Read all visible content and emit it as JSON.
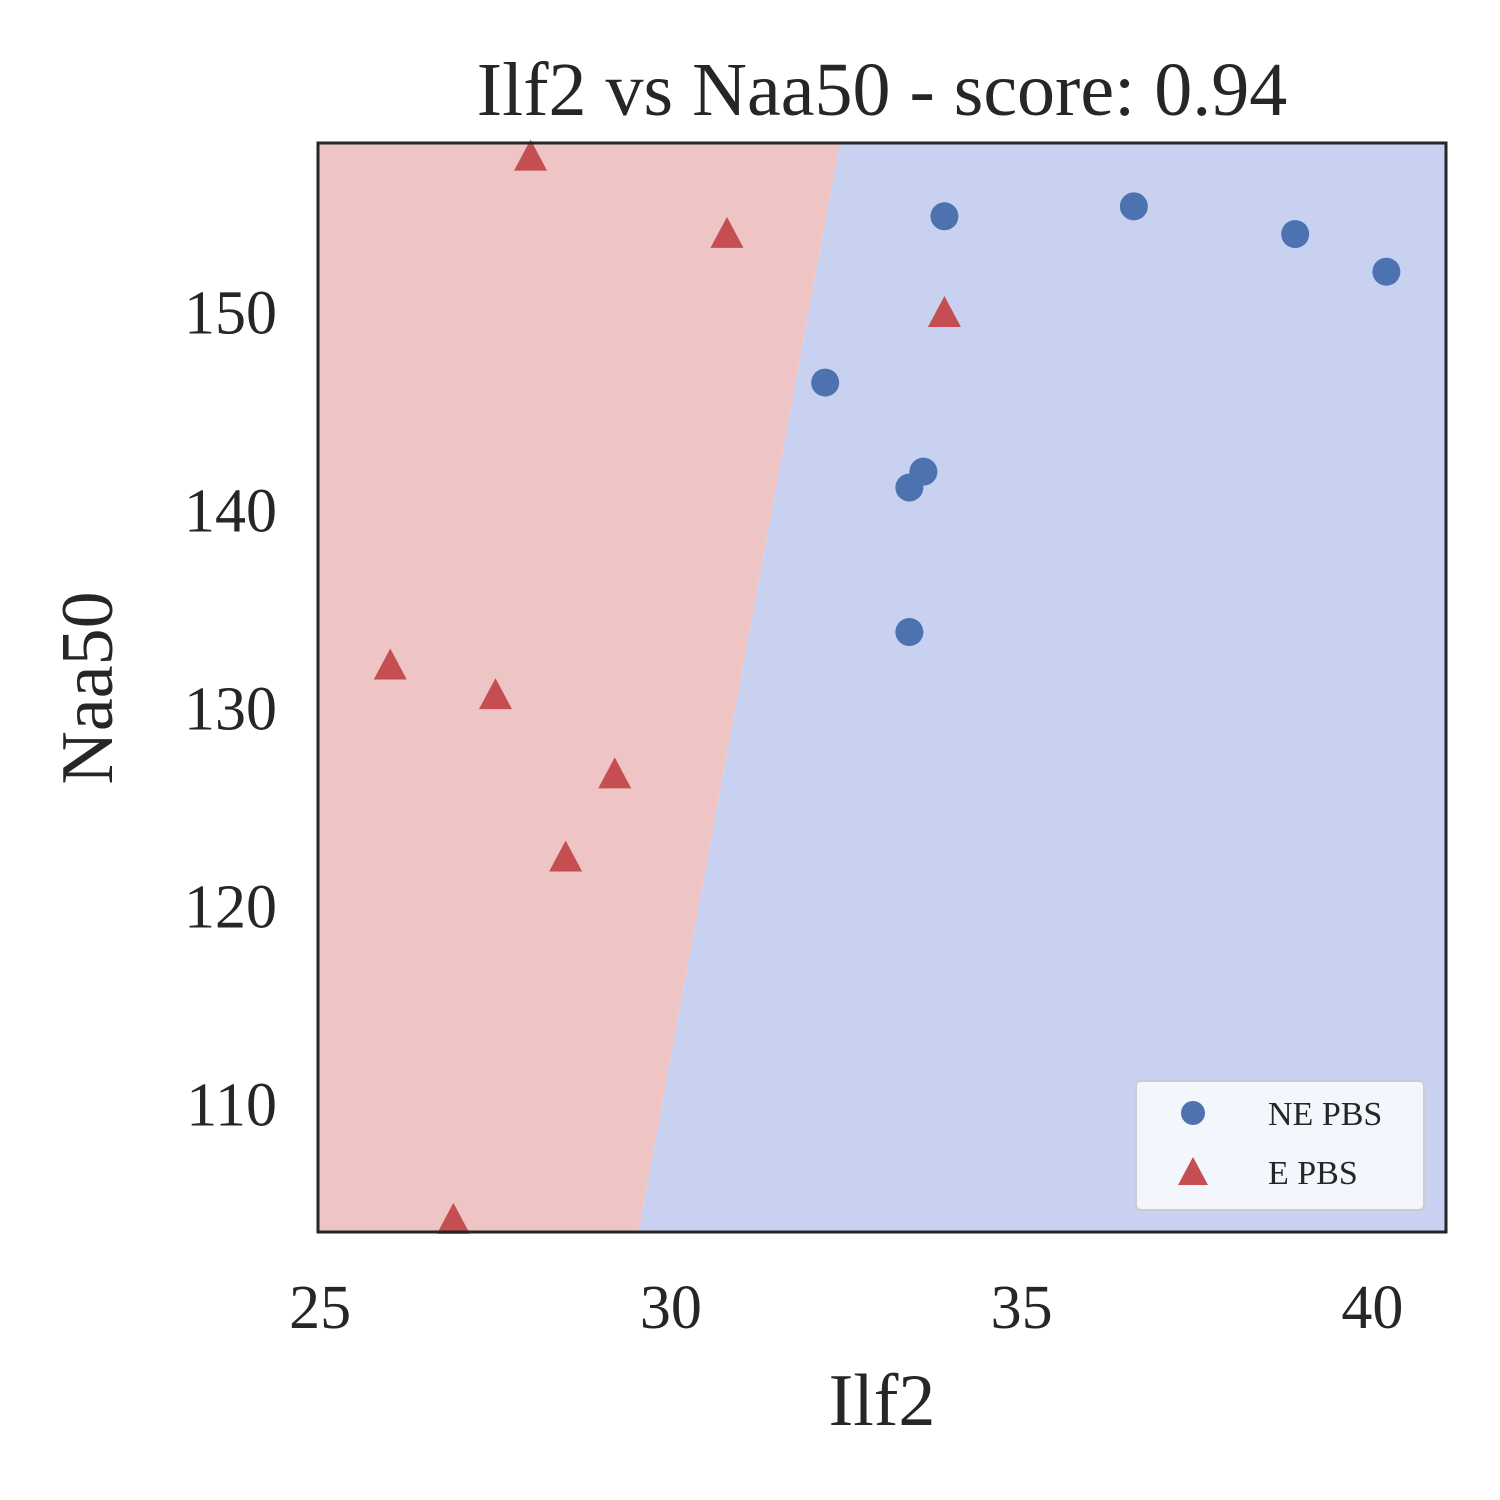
{
  "chart_data": {
    "type": "scatter",
    "title": "Ilf2 vs Naa50 - score: 0.94",
    "xlabel": "Ilf2",
    "ylabel": "Naa50",
    "xlim": [
      24.97,
      41.05
    ],
    "ylim": [
      103.5,
      158.5
    ],
    "xticks": [
      25,
      30,
      35,
      40
    ],
    "yticks": [
      110,
      120,
      130,
      140,
      150
    ],
    "grid": false,
    "legend_position": "lower-right",
    "decision_regions": {
      "boundary": [
        [
          29.54,
          103.5
        ],
        [
          32.41,
          158.5
        ]
      ],
      "left_class": "E PBS",
      "right_class": "NE PBS",
      "left_color": "#eec4c4",
      "right_color": "#c9d1f1"
    },
    "series": [
      {
        "name": "NE PBS",
        "marker": "circle",
        "color": "#4c72b0",
        "points": [
          [
            32.2,
            146.4
          ],
          [
            33.4,
            141.1
          ],
          [
            33.6,
            141.9
          ],
          [
            33.4,
            133.8
          ],
          [
            33.9,
            154.8
          ],
          [
            36.6,
            155.3
          ],
          [
            38.9,
            153.9
          ],
          [
            40.2,
            152.0
          ]
        ]
      },
      {
        "name": "E PBS",
        "marker": "triangle",
        "color": "#c44e52",
        "points": [
          [
            28.0,
            157.7
          ],
          [
            30.8,
            153.8
          ],
          [
            33.9,
            149.8
          ],
          [
            26.0,
            132.0
          ],
          [
            27.5,
            130.5
          ],
          [
            29.2,
            126.5
          ],
          [
            28.5,
            122.3
          ],
          [
            26.9,
            104.0
          ]
        ]
      }
    ]
  }
}
